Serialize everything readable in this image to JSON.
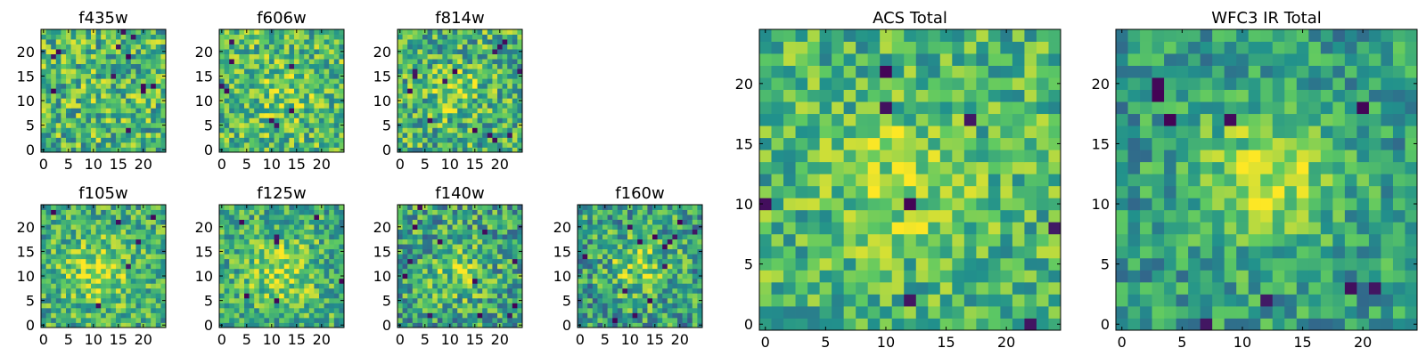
{
  "colormap": {
    "name": "viridis",
    "stops": [
      "#440154",
      "#3b528b",
      "#21918c",
      "#5ec962",
      "#fde725"
    ]
  },
  "chart_data": [
    {
      "id": "f435w",
      "type": "heatmap",
      "title": "f435w",
      "grid_size": 25,
      "xlim": [
        0,
        25
      ],
      "ylim": [
        0,
        25
      ],
      "xticks": [
        0,
        5,
        10,
        15,
        20
      ],
      "yticks": [
        0,
        5,
        10,
        15,
        20
      ],
      "seed": 11,
      "noise": 0.3,
      "peak": 0.03,
      "peak_center": [
        12,
        12
      ],
      "peak_width": 5,
      "base": 0.66,
      "dark_spots": 12
    },
    {
      "id": "f606w",
      "type": "heatmap",
      "title": "f606w",
      "grid_size": 25,
      "xlim": [
        0,
        25
      ],
      "ylim": [
        0,
        25
      ],
      "xticks": [
        0,
        5,
        10,
        15,
        20
      ],
      "yticks": [
        0,
        5,
        10,
        15,
        20
      ],
      "seed": 23,
      "noise": 0.28,
      "peak": 0.12,
      "peak_center": [
        12,
        12
      ],
      "peak_width": 4,
      "base": 0.68,
      "dark_spots": 8
    },
    {
      "id": "f814w",
      "type": "heatmap",
      "title": "f814w",
      "grid_size": 25,
      "xlim": [
        0,
        25
      ],
      "ylim": [
        0,
        25
      ],
      "xticks": [
        0,
        5,
        10,
        15,
        20
      ],
      "yticks": [
        0,
        5,
        10,
        15,
        20
      ],
      "seed": 37,
      "noise": 0.3,
      "peak": 0.18,
      "peak_center": [
        11,
        12
      ],
      "peak_width": 3.5,
      "base": 0.64,
      "dark_spots": 14
    },
    {
      "id": "f105w",
      "type": "heatmap",
      "title": "f105w",
      "grid_size": 25,
      "xlim": [
        0,
        25
      ],
      "ylim": [
        0,
        25
      ],
      "xticks": [
        0,
        5,
        10,
        15,
        20
      ],
      "yticks": [
        0,
        5,
        10,
        15,
        20
      ],
      "seed": 41,
      "noise": 0.26,
      "peak": 0.25,
      "peak_center": [
        11,
        11
      ],
      "peak_width": 5,
      "base": 0.62,
      "dark_spots": 6
    },
    {
      "id": "f125w",
      "type": "heatmap",
      "title": "f125w",
      "grid_size": 25,
      "xlim": [
        0,
        25
      ],
      "ylim": [
        0,
        25
      ],
      "xticks": [
        0,
        5,
        10,
        15,
        20
      ],
      "yticks": [
        0,
        5,
        10,
        15,
        20
      ],
      "seed": 53,
      "noise": 0.26,
      "peak": 0.22,
      "peak_center": [
        12,
        11
      ],
      "peak_width": 5,
      "base": 0.62,
      "dark_spots": 7
    },
    {
      "id": "f140w",
      "type": "heatmap",
      "title": "f140w",
      "grid_size": 25,
      "xlim": [
        0,
        25
      ],
      "ylim": [
        0,
        25
      ],
      "xticks": [
        0,
        5,
        10,
        15,
        20
      ],
      "yticks": [
        0,
        5,
        10,
        15,
        20
      ],
      "seed": 67,
      "noise": 0.3,
      "peak": 0.22,
      "peak_center": [
        12,
        11
      ],
      "peak_width": 4,
      "base": 0.58,
      "dark_spots": 12
    },
    {
      "id": "f160w",
      "type": "heatmap",
      "title": "f160w",
      "grid_size": 25,
      "xlim": [
        0,
        25
      ],
      "ylim": [
        0,
        25
      ],
      "xticks": [
        0,
        5,
        10,
        15,
        20
      ],
      "yticks": [
        0,
        5,
        10,
        15,
        20
      ],
      "seed": 79,
      "noise": 0.3,
      "peak": 0.24,
      "peak_center": [
        12,
        12
      ],
      "peak_width": 4.5,
      "base": 0.56,
      "dark_spots": 14
    },
    {
      "id": "acs_total",
      "type": "heatmap",
      "title": "ACS Total",
      "grid_size": 25,
      "xlim": [
        0,
        25
      ],
      "ylim": [
        0,
        25
      ],
      "xticks": [
        0,
        5,
        10,
        15,
        20
      ],
      "yticks": [
        0,
        5,
        10,
        15,
        20
      ],
      "seed": 97,
      "noise": 0.24,
      "peak": 0.18,
      "peak_center": [
        11,
        12
      ],
      "peak_width": 4,
      "base": 0.66,
      "dark_spots": 8
    },
    {
      "id": "wfc3_ir_total",
      "type": "heatmap",
      "title": "WFC3 IR Total",
      "grid_size": 25,
      "xlim": [
        0,
        25
      ],
      "ylim": [
        0,
        25
      ],
      "xticks": [
        0,
        5,
        10,
        15,
        20
      ],
      "yticks": [
        0,
        5,
        10,
        15,
        20
      ],
      "seed": 113,
      "noise": 0.22,
      "peak": 0.35,
      "peak_center": [
        12,
        12
      ],
      "peak_width": 4,
      "base": 0.55,
      "dark_spots": 9
    }
  ]
}
